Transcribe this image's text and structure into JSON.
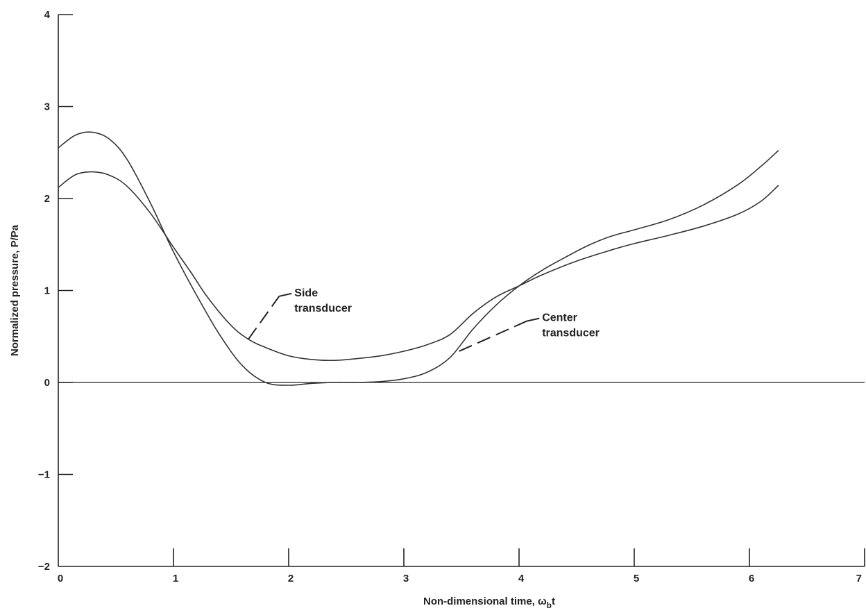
{
  "chart_data": {
    "type": "line",
    "xlabel": "Non-dimensional time, ω",
    "xlabel_sub": "b",
    "xlabel_tail": "t",
    "ylabel": "Normalized pressure, P/Pa",
    "xlim": [
      0,
      7
    ],
    "ylim": [
      -2,
      4
    ],
    "xticks": [
      {
        "value": 0,
        "label": "0"
      },
      {
        "value": 1,
        "label": "1"
      },
      {
        "value": 2,
        "label": "2"
      },
      {
        "value": 3,
        "label": "3"
      },
      {
        "value": 4,
        "label": "4"
      },
      {
        "value": 5,
        "label": "5"
      },
      {
        "value": 6,
        "label": "6"
      },
      {
        "value": 7,
        "label": "7"
      }
    ],
    "yticks": [
      {
        "value": -2,
        "label": "−2"
      },
      {
        "value": -1,
        "label": "−1"
      },
      {
        "value": 0,
        "label": "0"
      },
      {
        "value": 1,
        "label": "1"
      },
      {
        "value": 2,
        "label": "2"
      },
      {
        "value": 3,
        "label": "3"
      },
      {
        "value": 4,
        "label": "4"
      }
    ],
    "grid": false,
    "reference_line": 0,
    "series": [
      {
        "name": "Side transducer",
        "label_lines": [
          "Side",
          "transducer"
        ],
        "x": [
          0,
          0.15,
          0.3,
          0.45,
          0.6,
          0.8,
          1.0,
          1.15,
          1.3,
          1.5,
          1.65,
          1.8,
          2.0,
          2.2,
          2.4,
          2.6,
          2.8,
          3.0,
          3.2,
          3.4,
          3.6,
          3.8,
          4.0,
          4.2,
          4.5,
          4.8,
          5.0,
          5.3,
          5.6,
          5.9,
          6.1,
          6.25
        ],
        "y": [
          2.12,
          2.26,
          2.29,
          2.25,
          2.13,
          1.84,
          1.47,
          1.2,
          0.92,
          0.62,
          0.47,
          0.38,
          0.29,
          0.25,
          0.24,
          0.26,
          0.29,
          0.34,
          0.41,
          0.52,
          0.75,
          0.93,
          1.05,
          1.17,
          1.32,
          1.44,
          1.51,
          1.6,
          1.7,
          1.83,
          1.97,
          2.14
        ]
      },
      {
        "name": "Center transducer",
        "label_lines": [
          "Center",
          "transducer"
        ],
        "x": [
          0,
          0.15,
          0.3,
          0.45,
          0.6,
          0.8,
          1.0,
          1.2,
          1.4,
          1.6,
          1.8,
          2.0,
          2.2,
          2.4,
          2.6,
          2.8,
          3.0,
          3.2,
          3.4,
          3.6,
          3.8,
          4.0,
          4.2,
          4.4,
          4.6,
          4.8,
          5.0,
          5.3,
          5.6,
          5.9,
          6.1,
          6.25
        ],
        "y": [
          2.55,
          2.69,
          2.72,
          2.64,
          2.42,
          1.95,
          1.42,
          0.95,
          0.52,
          0.18,
          0.0,
          -0.03,
          -0.01,
          0.0,
          0.0,
          0.01,
          0.04,
          0.11,
          0.27,
          0.58,
          0.84,
          1.05,
          1.22,
          1.36,
          1.49,
          1.59,
          1.66,
          1.77,
          1.93,
          2.15,
          2.35,
          2.52
        ]
      }
    ],
    "annotations": [
      {
        "series": "Side transducer",
        "text_lines": [
          "Side",
          "transducer"
        ],
        "point": [
          1.65,
          0.47
        ],
        "label_at": [
          2.05,
          0.99
        ]
      },
      {
        "series": "Center transducer",
        "text_lines": [
          "Center",
          "transducer"
        ],
        "point": [
          3.48,
          0.34
        ],
        "label_at": [
          4.2,
          0.72
        ]
      }
    ]
  }
}
